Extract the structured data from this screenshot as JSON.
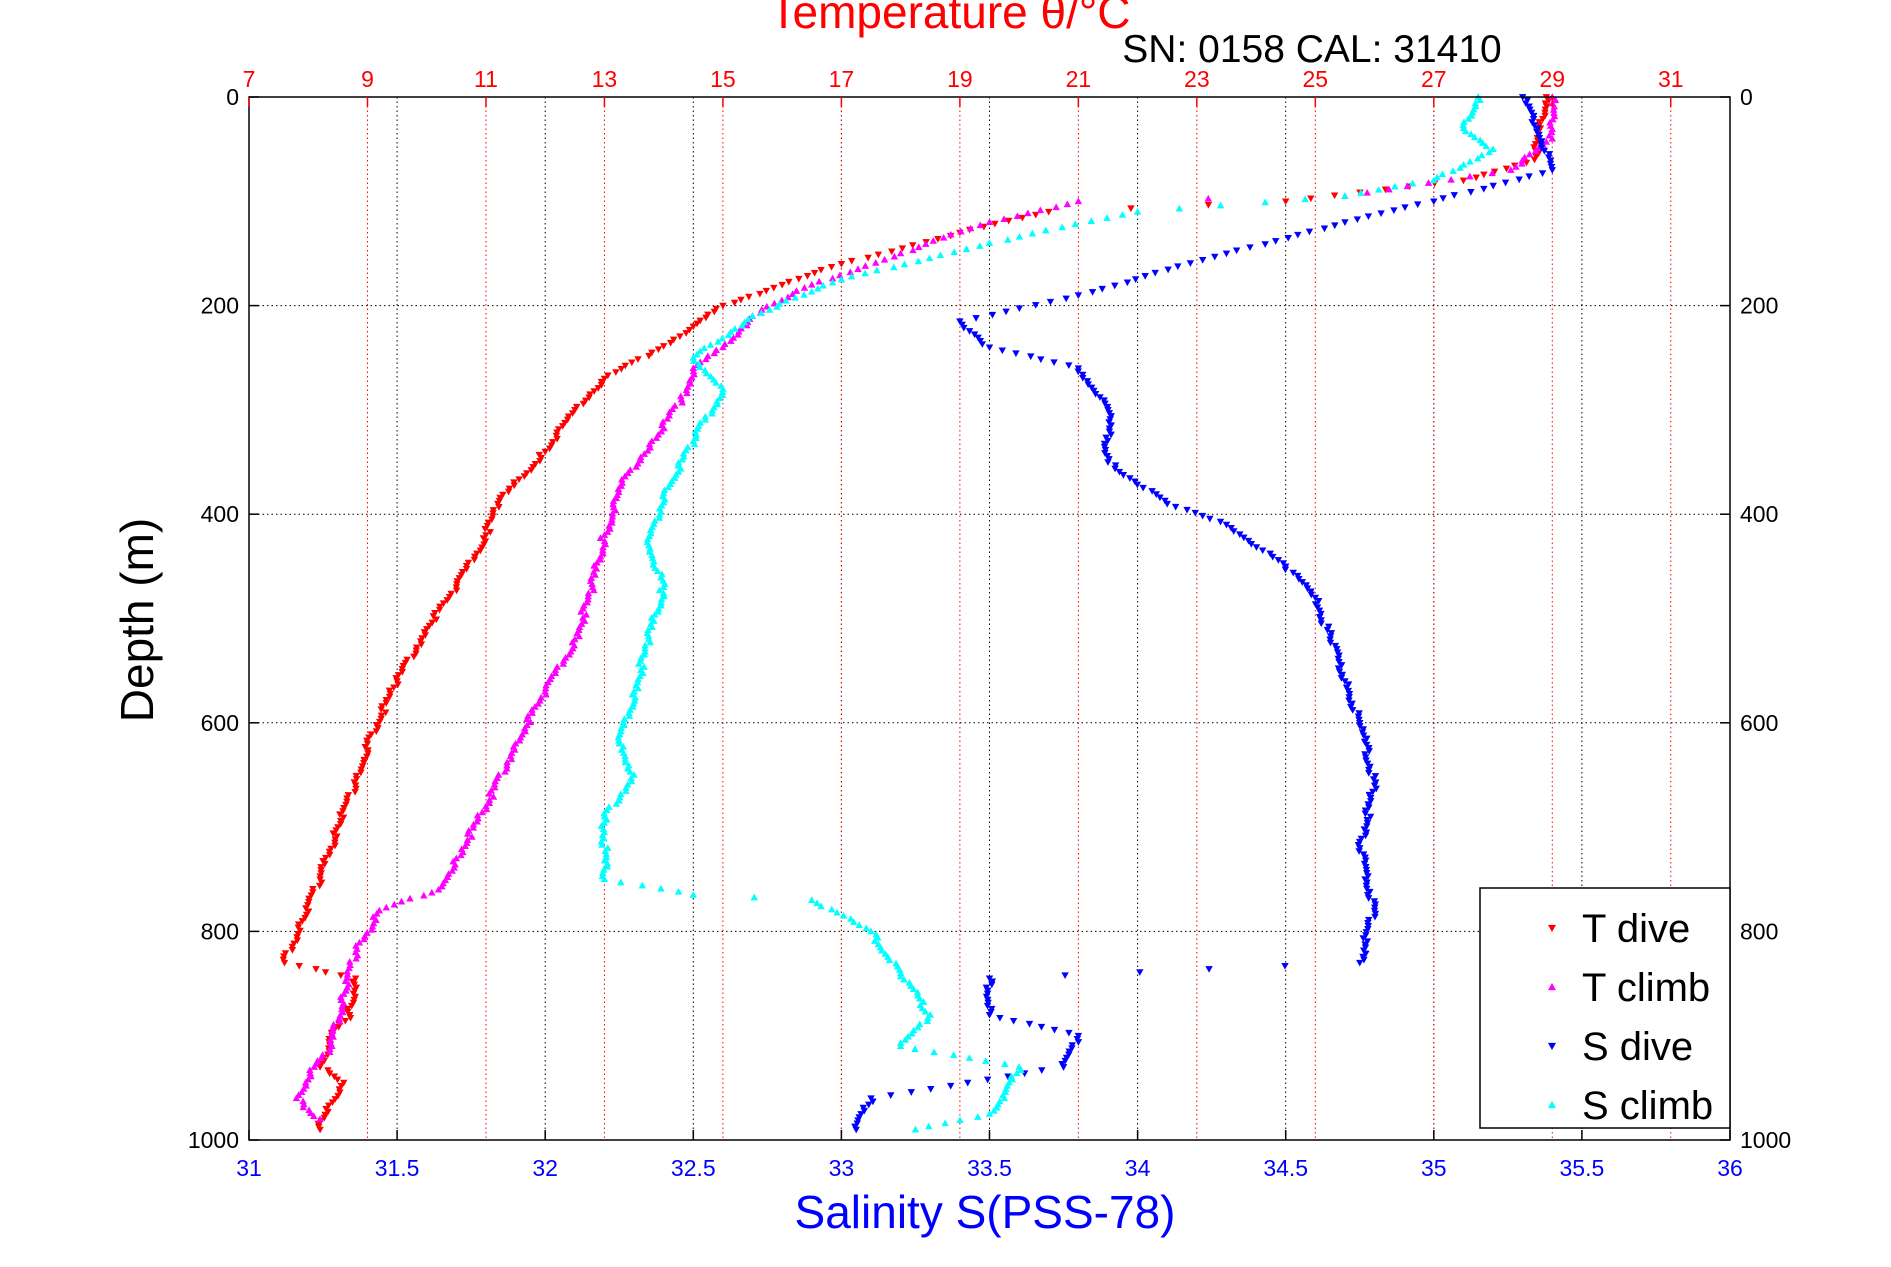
{
  "chart_data": {
    "type": "scatter",
    "title": "Temperature θ/°C",
    "subtitle": "SN: 0158  CAL: 31410",
    "ylabel": "Depth (m)",
    "xlabel": "Salinity S(PSS-78)",
    "ylim": [
      0,
      1000
    ],
    "y_reversed": true,
    "x_bottom": {
      "label": "Salinity S(PSS-78)",
      "range": [
        31,
        36
      ],
      "ticks": [
        "31",
        "31.5",
        "32",
        "32.5",
        "33",
        "33.5",
        "34",
        "34.5",
        "35",
        "35.5",
        "36"
      ],
      "color": "#0000ff"
    },
    "x_top": {
      "label": "Temperature θ/°C",
      "range": [
        7,
        32
      ],
      "ticks": [
        "7",
        "9",
        "11",
        "13",
        "15",
        "17",
        "19",
        "21",
        "23",
        "25",
        "27",
        "29",
        "31"
      ],
      "color": "#ff0000"
    },
    "y_ticks": [
      "0",
      "200",
      "400",
      "600",
      "800",
      "1000"
    ],
    "grid": true,
    "legend": "bottom-right",
    "series": [
      {
        "name": "T dive",
        "axis": "temperature",
        "marker": "triangle-down",
        "color": "#ff0000",
        "points": [
          [
            28.9,
            0
          ],
          [
            28.8,
            30
          ],
          [
            28.7,
            60
          ],
          [
            27.5,
            80
          ],
          [
            24.5,
            100
          ],
          [
            20.5,
            110
          ],
          [
            19.0,
            130
          ],
          [
            17.0,
            160
          ],
          [
            16.0,
            180
          ],
          [
            15.0,
            200
          ],
          [
            14.5,
            220
          ],
          [
            13.8,
            245
          ],
          [
            13.0,
            270
          ],
          [
            12.5,
            300
          ],
          [
            12.0,
            340
          ],
          [
            11.2,
            390
          ],
          [
            11.0,
            420
          ],
          [
            10.5,
            470
          ],
          [
            10.0,
            510
          ],
          [
            9.5,
            560
          ],
          [
            9.0,
            620
          ],
          [
            8.8,
            660
          ],
          [
            8.5,
            700
          ],
          [
            8.2,
            750
          ],
          [
            7.9,
            790
          ],
          [
            7.6,
            830
          ],
          [
            8.8,
            845
          ],
          [
            8.7,
            880
          ],
          [
            8.4,
            900
          ],
          [
            8.2,
            930
          ],
          [
            8.6,
            945
          ],
          [
            8.3,
            970
          ],
          [
            8.2,
            990
          ]
        ]
      },
      {
        "name": "T climb",
        "axis": "temperature",
        "marker": "triangle-up",
        "color": "#ff00ff",
        "points": [
          [
            29.0,
            0
          ],
          [
            29.0,
            40
          ],
          [
            28.3,
            70
          ],
          [
            25.5,
            95
          ],
          [
            21.0,
            100
          ],
          [
            19.5,
            120
          ],
          [
            18.0,
            150
          ],
          [
            16.5,
            180
          ],
          [
            15.5,
            210
          ],
          [
            15.0,
            240
          ],
          [
            14.5,
            260
          ],
          [
            14.3,
            290
          ],
          [
            13.8,
            330
          ],
          [
            13.3,
            370
          ],
          [
            13.0,
            420
          ],
          [
            12.8,
            470
          ],
          [
            12.5,
            520
          ],
          [
            12.0,
            570
          ],
          [
            11.5,
            620
          ],
          [
            11.0,
            680
          ],
          [
            10.5,
            730
          ],
          [
            10.2,
            760
          ],
          [
            9.2,
            780
          ],
          [
            8.8,
            820
          ],
          [
            8.6,
            860
          ],
          [
            8.4,
            910
          ],
          [
            8.1,
            930
          ],
          [
            7.8,
            960
          ],
          [
            8.2,
            980
          ]
        ]
      },
      {
        "name": "S dive",
        "axis": "salinity",
        "marker": "triangle-down",
        "color": "#0000ff",
        "points": [
          [
            35.3,
            0
          ],
          [
            35.35,
            30
          ],
          [
            35.4,
            70
          ],
          [
            35.0,
            100
          ],
          [
            34.7,
            120
          ],
          [
            34.3,
            150
          ],
          [
            33.8,
            190
          ],
          [
            33.4,
            215
          ],
          [
            33.5,
            240
          ],
          [
            33.8,
            260
          ],
          [
            33.9,
            300
          ],
          [
            33.9,
            350
          ],
          [
            34.1,
            390
          ],
          [
            34.3,
            410
          ],
          [
            34.5,
            450
          ],
          [
            34.6,
            480
          ],
          [
            34.65,
            520
          ],
          [
            34.7,
            560
          ],
          [
            34.75,
            600
          ],
          [
            34.8,
            660
          ],
          [
            34.75,
            720
          ],
          [
            34.8,
            780
          ],
          [
            34.75,
            830
          ],
          [
            33.5,
            845
          ],
          [
            33.5,
            880
          ],
          [
            33.8,
            900
          ],
          [
            33.75,
            930
          ],
          [
            33.1,
            960
          ],
          [
            33.05,
            990
          ]
        ]
      },
      {
        "name": "S climb",
        "axis": "salinity",
        "marker": "triangle-up",
        "color": "#00ffff",
        "points": [
          [
            35.15,
            0
          ],
          [
            35.1,
            30
          ],
          [
            35.2,
            50
          ],
          [
            35.0,
            80
          ],
          [
            34.7,
            95
          ],
          [
            34.0,
            110
          ],
          [
            33.5,
            140
          ],
          [
            33.0,
            175
          ],
          [
            32.7,
            210
          ],
          [
            32.5,
            250
          ],
          [
            32.6,
            280
          ],
          [
            32.5,
            330
          ],
          [
            32.4,
            380
          ],
          [
            32.35,
            430
          ],
          [
            32.4,
            470
          ],
          [
            32.35,
            520
          ],
          [
            32.3,
            570
          ],
          [
            32.25,
            620
          ],
          [
            32.3,
            650
          ],
          [
            32.2,
            690
          ],
          [
            32.2,
            750
          ],
          [
            32.5,
            765
          ],
          [
            32.9,
            770
          ],
          [
            33.1,
            800
          ],
          [
            33.2,
            840
          ],
          [
            33.3,
            880
          ],
          [
            33.2,
            910
          ],
          [
            33.6,
            930
          ],
          [
            33.55,
            960
          ],
          [
            33.5,
            975
          ],
          [
            33.25,
            990
          ]
        ]
      }
    ]
  }
}
